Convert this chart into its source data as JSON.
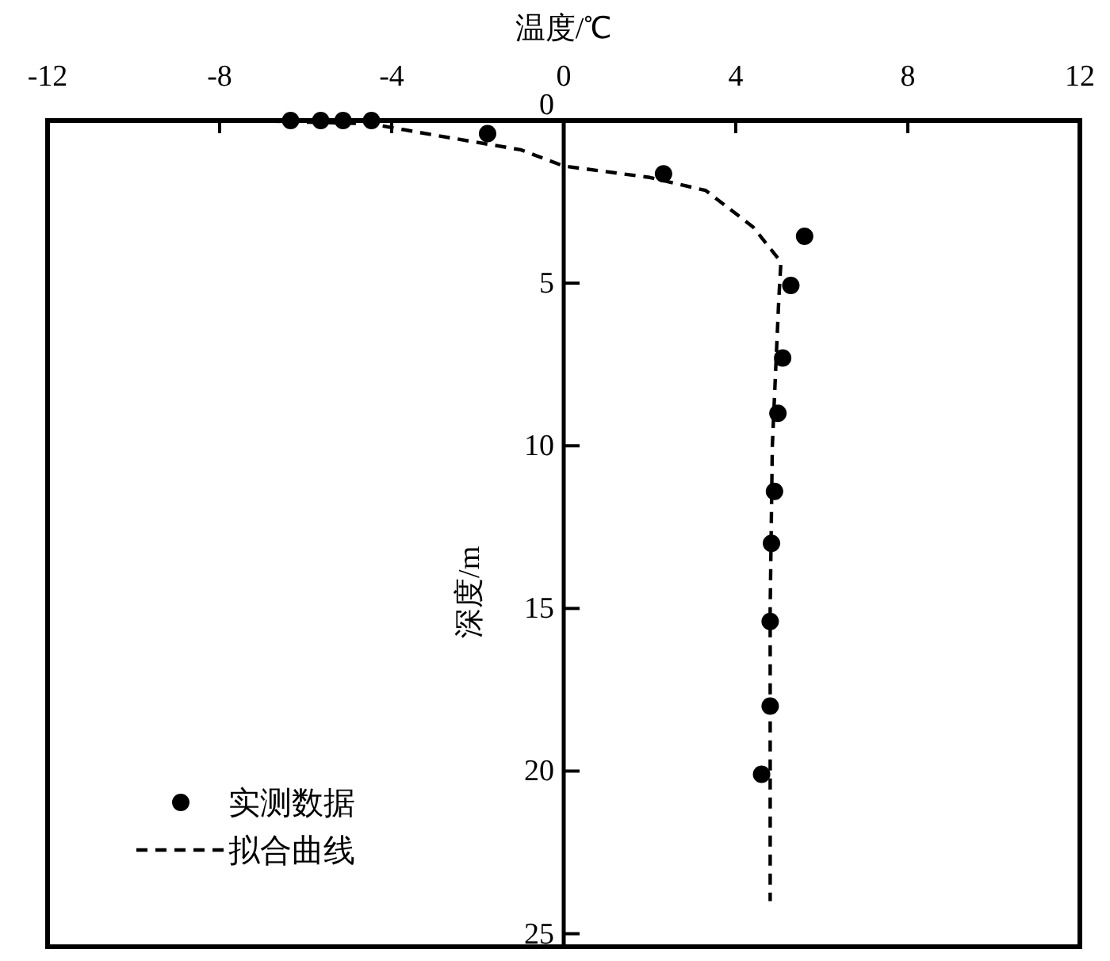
{
  "chart_data": {
    "type": "scatter",
    "xlabel": "温度/℃",
    "ylabel": "深度/m",
    "xlim": [
      -12,
      12
    ],
    "xticks": [
      -12,
      -8,
      -4,
      0,
      4,
      8,
      12
    ],
    "ylim": [
      25.4,
      0
    ],
    "yticks": [
      0,
      5,
      10,
      15,
      20,
      25
    ],
    "legend": "bottom left",
    "grid": false,
    "series": [
      {
        "name": "实测数据",
        "marker": "circle",
        "color": "#000000",
        "x": [
          -6.35,
          -5.65,
          -5.13,
          -4.47,
          -1.77,
          2.32,
          5.6,
          5.28,
          5.09,
          4.98,
          4.9,
          4.83,
          4.8,
          4.8,
          4.6
        ],
        "values": [
          0,
          0,
          0,
          0,
          0.4,
          1.64,
          3.56,
          5.07,
          7.3,
          9.0,
          11.4,
          13.0,
          15.4,
          18.0,
          20.1
        ]
      },
      {
        "name": "拟合曲线",
        "type": "line",
        "line_style": "dashed",
        "marker": "none",
        "color": "#000000",
        "x": [
          -7.3,
          -4.5,
          -3.0,
          -1.0,
          0.0,
          2.0,
          3.3,
          4.4,
          5.05,
          5.0,
          4.95,
          4.85,
          4.8,
          4.8,
          4.8
        ],
        "values": [
          0,
          0.1,
          0.45,
          0.9,
          1.4,
          1.75,
          2.15,
          3.27,
          4.35,
          5.5,
          7.0,
          10.0,
          15.0,
          20.0,
          24.0
        ]
      }
    ]
  }
}
